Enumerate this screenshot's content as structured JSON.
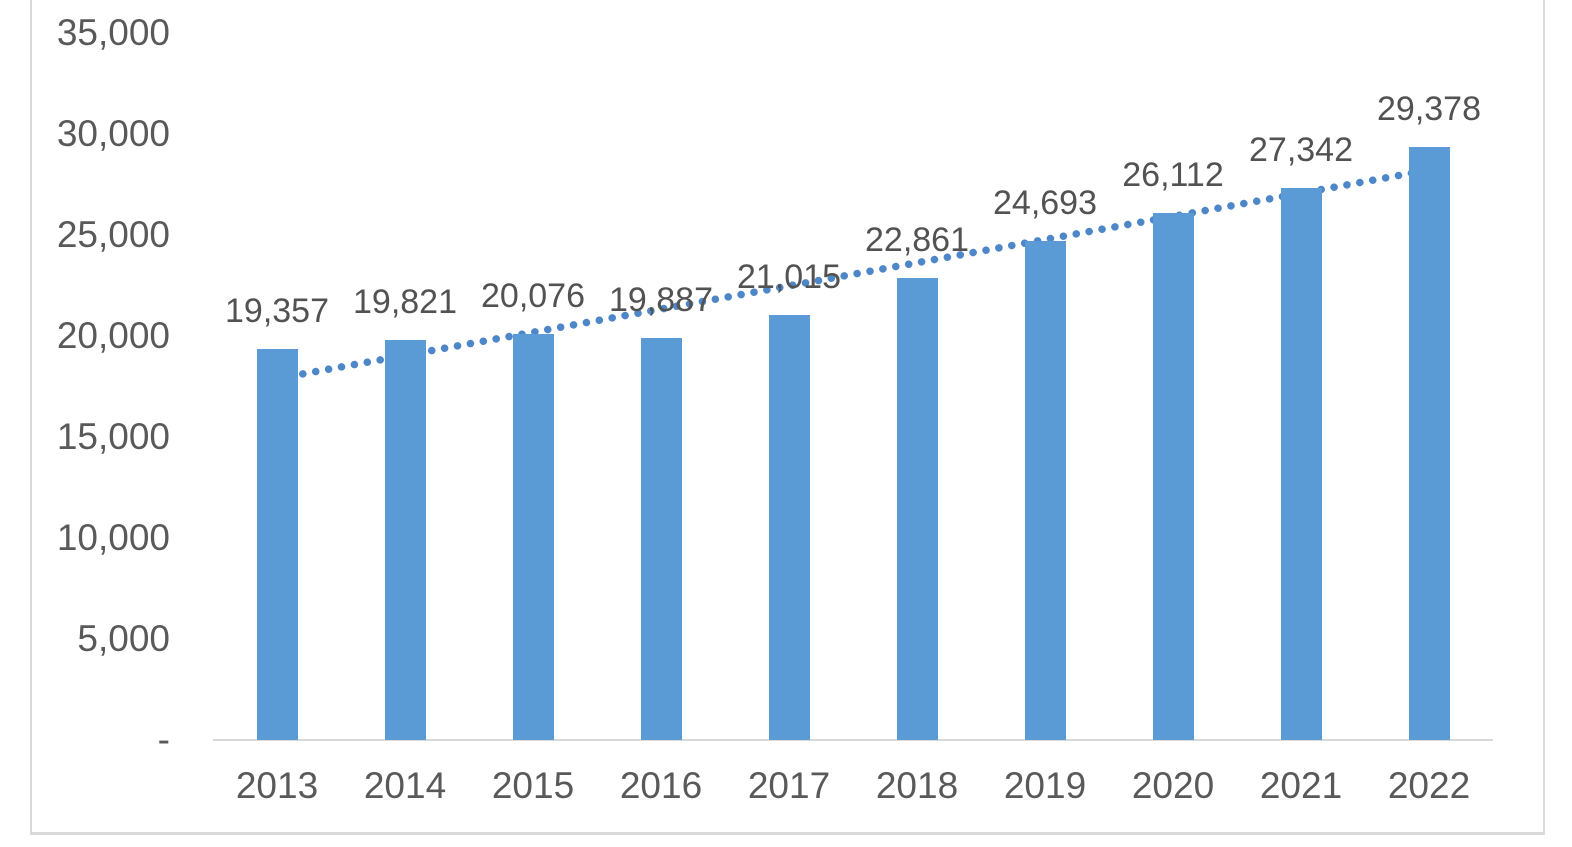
{
  "chart_data": {
    "type": "bar",
    "title": "",
    "xlabel": "",
    "ylabel": "",
    "categories": [
      "2013",
      "2014",
      "2015",
      "2016",
      "2017",
      "2018",
      "2019",
      "2020",
      "2021",
      "2022"
    ],
    "values": [
      19357,
      19821,
      20076,
      19887,
      21015,
      22861,
      24693,
      26112,
      27342,
      29378
    ],
    "data_labels": [
      "19,357",
      "19,821",
      "20,076",
      "19,887",
      "21,015",
      "22,861",
      "24,693",
      "26,112",
      "27,342",
      "29,378"
    ],
    "y_axis": {
      "ylim": [
        0,
        35000
      ],
      "tick_step": 5000,
      "ticks": [
        {
          "label": "35,000",
          "value": 35000
        },
        {
          "label": "30,000",
          "value": 30000
        },
        {
          "label": "25,000",
          "value": 25000
        },
        {
          "label": "20,000",
          "value": 20000
        },
        {
          "label": "15,000",
          "value": 15000
        },
        {
          "label": "10,000",
          "value": 10000
        },
        {
          "label": "5,000",
          "value": 5000
        },
        {
          "label": "-",
          "value": 0
        }
      ]
    },
    "trendline": {
      "kind": "linear",
      "style": "dotted",
      "drawn_behind_bars": true
    },
    "legend_position": "none",
    "gridlines": "off",
    "colors": {
      "bar": "#5B9BD5",
      "trend": "#4E87C8",
      "axis_text": "#595959",
      "data_label_text": "#525252",
      "axis_line": "#D9D9D9",
      "frame_border": "#D9D9D9",
      "background": "#FFFFFF"
    }
  }
}
